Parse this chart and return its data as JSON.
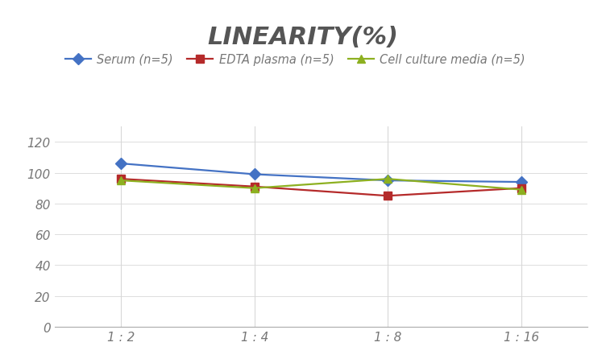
{
  "title": "LINEARITY(%)",
  "title_fontsize": 22,
  "title_fontstyle": "italic",
  "title_fontweight": "bold",
  "title_color": "#555555",
  "x_labels": [
    "1 : 2",
    "1 : 4",
    "1 : 8",
    "1 : 16"
  ],
  "x_positions": [
    0,
    1,
    2,
    3
  ],
  "series": [
    {
      "label": "Serum (n=5)",
      "values": [
        106,
        99,
        95,
        94
      ],
      "color": "#4472C4",
      "marker": "D",
      "linewidth": 1.6
    },
    {
      "label": "EDTA plasma (n=5)",
      "values": [
        96,
        91,
        85,
        90
      ],
      "color": "#B52A2A",
      "marker": "s",
      "linewidth": 1.6
    },
    {
      "label": "Cell culture media (n=5)",
      "values": [
        95,
        90,
        96,
        89
      ],
      "color": "#8DB020",
      "marker": "^",
      "linewidth": 1.6
    }
  ],
  "ylim": [
    0,
    130
  ],
  "yticks": [
    0,
    20,
    40,
    60,
    80,
    100,
    120
  ],
  "grid_color": "#D8D8D8",
  "background_color": "#FFFFFF",
  "legend_fontsize": 10.5,
  "tick_fontsize": 11,
  "marker_size": 7,
  "tick_color": "#777777"
}
